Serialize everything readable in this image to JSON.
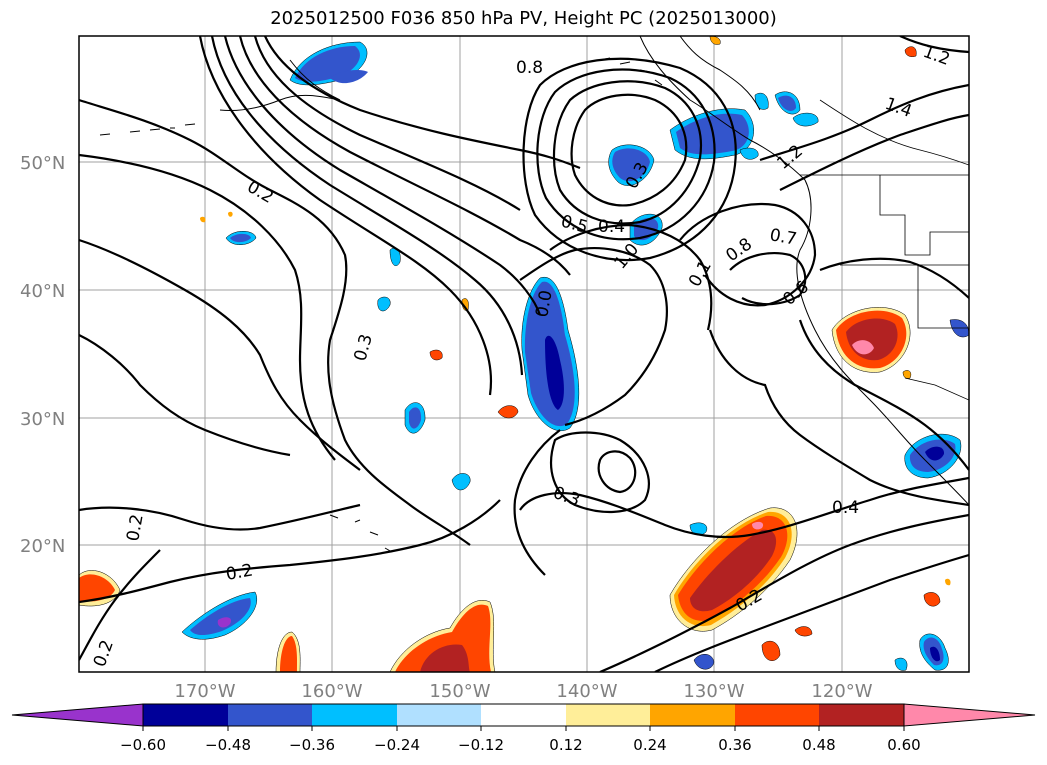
{
  "title": "2025012500 F036 850 hPa PV, Height PC (2025013000)",
  "lat_labels": [
    "50°N",
    "40°N",
    "30°N",
    "20°N"
  ],
  "lon_labels": [
    "170°W",
    "160°W",
    "150°W",
    "140°W",
    "130°W",
    "120°W"
  ],
  "colorbar": {
    "ticks": [
      "−0.60",
      "−0.48",
      "−0.36",
      "−0.24",
      "−0.12",
      "0.12",
      "0.24",
      "0.36",
      "0.48",
      "0.60"
    ],
    "colors": [
      "#9933cc",
      "#000099",
      "#3355cc",
      "#00bfff",
      "#b0e0ff",
      "#ffffff",
      "#ffee99",
      "#ffa500",
      "#ff4500",
      "#b22222",
      "#ff88aa"
    ]
  },
  "contour_labels": [
    "0.8",
    "1.4",
    "1.2",
    "0.2",
    "0.3",
    "0.5",
    "0.4",
    "1.0",
    "0.7",
    "0.8",
    "0.1",
    "0.6",
    "1.2",
    "0.3",
    "0.3",
    "0.4",
    "0.2",
    "0.2",
    "0.2",
    "0.2",
    "0.0"
  ]
}
